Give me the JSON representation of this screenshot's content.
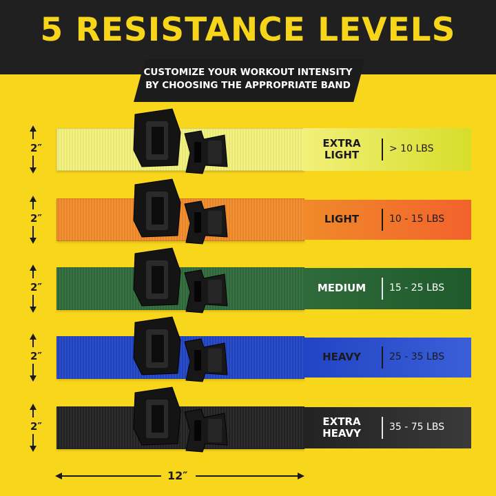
{
  "header": {
    "title": "5 RESISTANCE LEVELS",
    "subtitle_line1": "CUSTOMIZE YOUR WORKOUT INTENSITY",
    "subtitle_line2": "BY CHOOSING THE APPROPRIATE BAND"
  },
  "bands": [
    {
      "name_line1": "EXTRA",
      "name_line2": "LIGHT",
      "range": "> 10 LBS",
      "width_label": "2″",
      "color": "#f2f07a",
      "panel_color": "#d8dd2a"
    },
    {
      "name_line1": "LIGHT",
      "name_line2": "",
      "range": "10 - 15 LBS",
      "width_label": "2″",
      "color": "#f08a2a",
      "panel_color": "#f2622c"
    },
    {
      "name_line1": "MEDIUM",
      "name_line2": "",
      "range": "15 - 25 LBS",
      "width_label": "2″",
      "color": "#2f6a3a",
      "panel_color": "#1f5a2c"
    },
    {
      "name_line1": "HEAVY",
      "name_line2": "",
      "range": "25 - 35 LBS",
      "width_label": "2″",
      "color": "#2144c4",
      "panel_color": "#3a5fd8"
    },
    {
      "name_line1": "EXTRA",
      "name_line2": "HEAVY",
      "range": "35 - 75 LBS",
      "width_label": "2″",
      "color": "#222222",
      "panel_color": "#3a3a3a"
    }
  ],
  "length_label": "12″",
  "colors": {
    "background": "#f8d61c",
    "header_dark": "#202020",
    "headline_yellow": "#f7d51a"
  },
  "icons": [
    "buckle-icon",
    "double-arrow-icon"
  ]
}
